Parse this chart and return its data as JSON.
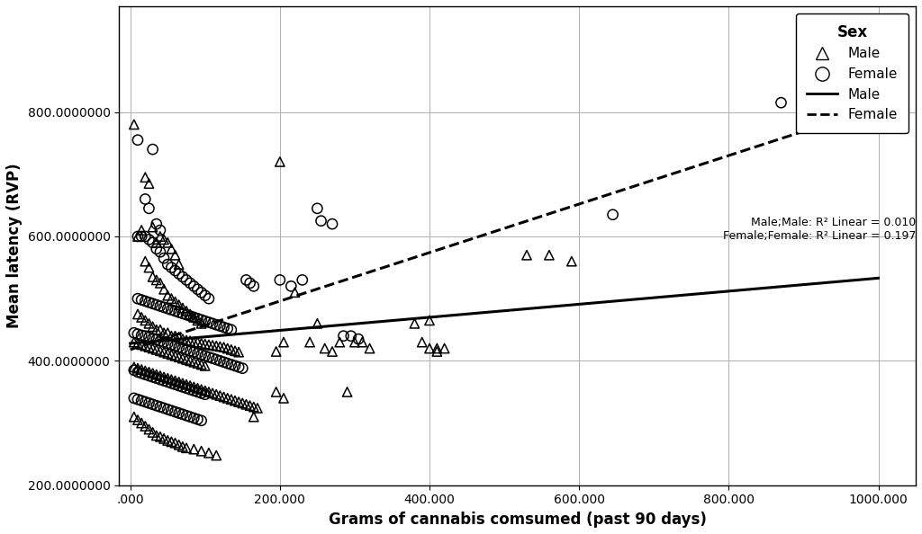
{
  "xlabel": "Grams of cannabis comsumed (past 90 days)",
  "ylabel": "Mean latency (RVP)",
  "xlim": [
    -15,
    1050
  ],
  "ylim": [
    200000000,
    970000000
  ],
  "xticks": [
    0,
    200,
    400,
    600,
    800,
    1000
  ],
  "xtick_labels": [
    ".000",
    "200.000",
    "400.000",
    "600.000",
    "800.000",
    "1000.000"
  ],
  "yticks": [
    200000000,
    400000000,
    600000000,
    800000000
  ],
  "ytick_labels": [
    "200.0000000",
    "400.0000000",
    "600.0000000",
    "800.0000000"
  ],
  "legend_title": "Sex",
  "male_r2": "0.010",
  "female_r2": "0.197",
  "male_line": {
    "x0": 0,
    "y0": 428000000,
    "x1": 1000,
    "y1": 533000000
  },
  "female_line": {
    "x0": 0,
    "y0": 418000000,
    "x1": 1000,
    "y1": 808000000
  },
  "male_points": [
    [
      5,
      780000000
    ],
    [
      20,
      695000000
    ],
    [
      25,
      685000000
    ],
    [
      30,
      615000000
    ],
    [
      35,
      590000000
    ],
    [
      10,
      600000000
    ],
    [
      15,
      610000000
    ],
    [
      40,
      600000000
    ],
    [
      45,
      595000000
    ],
    [
      50,
      590000000
    ],
    [
      55,
      580000000
    ],
    [
      60,
      570000000
    ],
    [
      65,
      555000000
    ],
    [
      20,
      560000000
    ],
    [
      25,
      550000000
    ],
    [
      30,
      535000000
    ],
    [
      35,
      530000000
    ],
    [
      40,
      525000000
    ],
    [
      45,
      515000000
    ],
    [
      50,
      505000000
    ],
    [
      55,
      500000000
    ],
    [
      60,
      495000000
    ],
    [
      65,
      490000000
    ],
    [
      70,
      485000000
    ],
    [
      75,
      480000000
    ],
    [
      80,
      475000000
    ],
    [
      85,
      470000000
    ],
    [
      90,
      465000000
    ],
    [
      95,
      460000000
    ],
    [
      10,
      475000000
    ],
    [
      15,
      470000000
    ],
    [
      20,
      465000000
    ],
    [
      25,
      460000000
    ],
    [
      30,
      455000000
    ],
    [
      35,
      450000000
    ],
    [
      40,
      450000000
    ],
    [
      45,
      445000000
    ],
    [
      50,
      445000000
    ],
    [
      55,
      440000000
    ],
    [
      60,
      440000000
    ],
    [
      65,
      438000000
    ],
    [
      70,
      435000000
    ],
    [
      75,
      433000000
    ],
    [
      80,
      432000000
    ],
    [
      85,
      430000000
    ],
    [
      90,
      430000000
    ],
    [
      95,
      428000000
    ],
    [
      100,
      427000000
    ],
    [
      105,
      426000000
    ],
    [
      110,
      425000000
    ],
    [
      115,
      424000000
    ],
    [
      120,
      423000000
    ],
    [
      125,
      422000000
    ],
    [
      130,
      420000000
    ],
    [
      135,
      418000000
    ],
    [
      140,
      416000000
    ],
    [
      145,
      414000000
    ],
    [
      5,
      430000000
    ],
    [
      10,
      428000000
    ],
    [
      15,
      426000000
    ],
    [
      20,
      424000000
    ],
    [
      25,
      422000000
    ],
    [
      30,
      420000000
    ],
    [
      35,
      418000000
    ],
    [
      40,
      416000000
    ],
    [
      45,
      414000000
    ],
    [
      50,
      412000000
    ],
    [
      55,
      410000000
    ],
    [
      60,
      408000000
    ],
    [
      65,
      406000000
    ],
    [
      70,
      404000000
    ],
    [
      75,
      402000000
    ],
    [
      80,
      400000000
    ],
    [
      85,
      398000000
    ],
    [
      90,
      396000000
    ],
    [
      95,
      394000000
    ],
    [
      100,
      392000000
    ],
    [
      5,
      390000000
    ],
    [
      10,
      388000000
    ],
    [
      15,
      386000000
    ],
    [
      20,
      384000000
    ],
    [
      25,
      382000000
    ],
    [
      30,
      380000000
    ],
    [
      35,
      378000000
    ],
    [
      40,
      376000000
    ],
    [
      45,
      374000000
    ],
    [
      50,
      372000000
    ],
    [
      55,
      370000000
    ],
    [
      60,
      368000000
    ],
    [
      65,
      366000000
    ],
    [
      70,
      364000000
    ],
    [
      75,
      362000000
    ],
    [
      80,
      360000000
    ],
    [
      85,
      358000000
    ],
    [
      90,
      356000000
    ],
    [
      95,
      354000000
    ],
    [
      100,
      352000000
    ],
    [
      105,
      350000000
    ],
    [
      110,
      348000000
    ],
    [
      115,
      346000000
    ],
    [
      120,
      344000000
    ],
    [
      125,
      342000000
    ],
    [
      130,
      340000000
    ],
    [
      135,
      338000000
    ],
    [
      140,
      336000000
    ],
    [
      145,
      334000000
    ],
    [
      150,
      332000000
    ],
    [
      155,
      330000000
    ],
    [
      160,
      328000000
    ],
    [
      165,
      326000000
    ],
    [
      170,
      324000000
    ],
    [
      5,
      310000000
    ],
    [
      10,
      305000000
    ],
    [
      15,
      300000000
    ],
    [
      20,
      295000000
    ],
    [
      25,
      290000000
    ],
    [
      30,
      285000000
    ],
    [
      35,
      280000000
    ],
    [
      40,
      278000000
    ],
    [
      45,
      275000000
    ],
    [
      50,
      272000000
    ],
    [
      55,
      270000000
    ],
    [
      60,
      268000000
    ],
    [
      65,
      265000000
    ],
    [
      70,
      262000000
    ],
    [
      75,
      260000000
    ],
    [
      85,
      258000000
    ],
    [
      95,
      255000000
    ],
    [
      105,
      252000000
    ],
    [
      115,
      248000000
    ],
    [
      200,
      720000000
    ],
    [
      195,
      415000000
    ],
    [
      205,
      430000000
    ],
    [
      220,
      510000000
    ],
    [
      250,
      460000000
    ],
    [
      280,
      430000000
    ],
    [
      300,
      430000000
    ],
    [
      310,
      430000000
    ],
    [
      320,
      420000000
    ],
    [
      380,
      460000000
    ],
    [
      400,
      465000000
    ],
    [
      410,
      420000000
    ],
    [
      420,
      420000000
    ],
    [
      560,
      570000000
    ],
    [
      390,
      430000000
    ],
    [
      260,
      420000000
    ],
    [
      270,
      415000000
    ],
    [
      240,
      430000000
    ],
    [
      290,
      350000000
    ],
    [
      195,
      350000000
    ],
    [
      205,
      340000000
    ],
    [
      165,
      310000000
    ],
    [
      400,
      420000000
    ],
    [
      410,
      415000000
    ],
    [
      530,
      570000000
    ],
    [
      590,
      560000000
    ]
  ],
  "female_points": [
    [
      10,
      755000000
    ],
    [
      30,
      740000000
    ],
    [
      20,
      660000000
    ],
    [
      25,
      645000000
    ],
    [
      35,
      620000000
    ],
    [
      40,
      610000000
    ],
    [
      10,
      600000000
    ],
    [
      15,
      600000000
    ],
    [
      20,
      600000000
    ],
    [
      25,
      595000000
    ],
    [
      30,
      590000000
    ],
    [
      35,
      580000000
    ],
    [
      40,
      575000000
    ],
    [
      45,
      565000000
    ],
    [
      50,
      555000000
    ],
    [
      55,
      550000000
    ],
    [
      60,
      545000000
    ],
    [
      65,
      540000000
    ],
    [
      70,
      535000000
    ],
    [
      75,
      530000000
    ],
    [
      80,
      525000000
    ],
    [
      85,
      520000000
    ],
    [
      90,
      515000000
    ],
    [
      95,
      510000000
    ],
    [
      100,
      505000000
    ],
    [
      105,
      500000000
    ],
    [
      10,
      500000000
    ],
    [
      15,
      498000000
    ],
    [
      20,
      496000000
    ],
    [
      25,
      494000000
    ],
    [
      30,
      492000000
    ],
    [
      35,
      490000000
    ],
    [
      40,
      488000000
    ],
    [
      45,
      486000000
    ],
    [
      50,
      484000000
    ],
    [
      55,
      482000000
    ],
    [
      60,
      480000000
    ],
    [
      65,
      478000000
    ],
    [
      70,
      476000000
    ],
    [
      75,
      474000000
    ],
    [
      80,
      472000000
    ],
    [
      85,
      470000000
    ],
    [
      90,
      468000000
    ],
    [
      95,
      466000000
    ],
    [
      100,
      464000000
    ],
    [
      105,
      462000000
    ],
    [
      110,
      460000000
    ],
    [
      115,
      458000000
    ],
    [
      120,
      456000000
    ],
    [
      125,
      454000000
    ],
    [
      130,
      452000000
    ],
    [
      135,
      450000000
    ],
    [
      5,
      445000000
    ],
    [
      10,
      443000000
    ],
    [
      15,
      441000000
    ],
    [
      20,
      440000000
    ],
    [
      25,
      438000000
    ],
    [
      30,
      436000000
    ],
    [
      35,
      434000000
    ],
    [
      40,
      432000000
    ],
    [
      45,
      430000000
    ],
    [
      50,
      428000000
    ],
    [
      55,
      426000000
    ],
    [
      60,
      424000000
    ],
    [
      65,
      422000000
    ],
    [
      70,
      420000000
    ],
    [
      75,
      418000000
    ],
    [
      80,
      416000000
    ],
    [
      85,
      414000000
    ],
    [
      90,
      412000000
    ],
    [
      95,
      410000000
    ],
    [
      100,
      408000000
    ],
    [
      105,
      406000000
    ],
    [
      110,
      404000000
    ],
    [
      115,
      402000000
    ],
    [
      120,
      400000000
    ],
    [
      125,
      398000000
    ],
    [
      130,
      396000000
    ],
    [
      135,
      394000000
    ],
    [
      140,
      392000000
    ],
    [
      145,
      390000000
    ],
    [
      150,
      388000000
    ],
    [
      5,
      385000000
    ],
    [
      10,
      382000000
    ],
    [
      15,
      380000000
    ],
    [
      20,
      378000000
    ],
    [
      25,
      376000000
    ],
    [
      30,
      374000000
    ],
    [
      35,
      372000000
    ],
    [
      40,
      370000000
    ],
    [
      45,
      368000000
    ],
    [
      50,
      366000000
    ],
    [
      55,
      364000000
    ],
    [
      60,
      362000000
    ],
    [
      65,
      360000000
    ],
    [
      70,
      358000000
    ],
    [
      75,
      356000000
    ],
    [
      80,
      354000000
    ],
    [
      85,
      352000000
    ],
    [
      90,
      350000000
    ],
    [
      95,
      348000000
    ],
    [
      100,
      346000000
    ],
    [
      5,
      340000000
    ],
    [
      10,
      338000000
    ],
    [
      15,
      336000000
    ],
    [
      20,
      334000000
    ],
    [
      25,
      332000000
    ],
    [
      30,
      330000000
    ],
    [
      35,
      328000000
    ],
    [
      40,
      326000000
    ],
    [
      45,
      324000000
    ],
    [
      50,
      322000000
    ],
    [
      55,
      320000000
    ],
    [
      60,
      318000000
    ],
    [
      65,
      316000000
    ],
    [
      70,
      314000000
    ],
    [
      75,
      312000000
    ],
    [
      80,
      310000000
    ],
    [
      85,
      308000000
    ],
    [
      90,
      306000000
    ],
    [
      95,
      304000000
    ],
    [
      200,
      530000000
    ],
    [
      215,
      520000000
    ],
    [
      230,
      530000000
    ],
    [
      250,
      645000000
    ],
    [
      255,
      625000000
    ],
    [
      270,
      620000000
    ],
    [
      285,
      440000000
    ],
    [
      295,
      440000000
    ],
    [
      305,
      435000000
    ],
    [
      870,
      815000000
    ],
    [
      645,
      635000000
    ],
    [
      155,
      530000000
    ],
    [
      160,
      525000000
    ],
    [
      165,
      520000000
    ]
  ],
  "background_color": "#ffffff",
  "grid_color": "#b0b0b0",
  "marker_color": "black",
  "line_color": "black",
  "font_size_labels": 12,
  "font_size_ticks": 10,
  "font_size_legend_title": 12,
  "font_size_legend": 11
}
